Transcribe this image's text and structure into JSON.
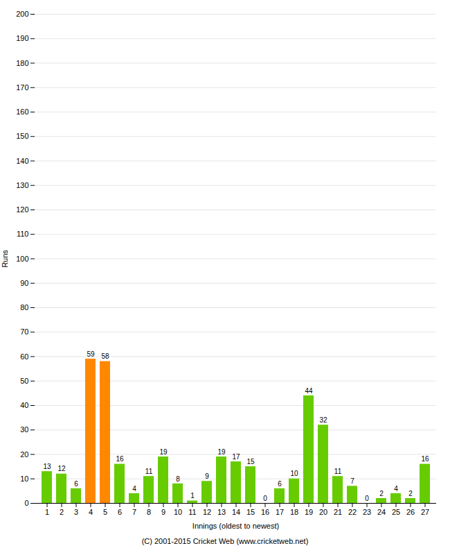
{
  "chart_data": {
    "type": "bar",
    "categories": [
      "1",
      "2",
      "3",
      "4",
      "5",
      "6",
      "7",
      "8",
      "9",
      "10",
      "11",
      "12",
      "13",
      "14",
      "15",
      "16",
      "17",
      "18",
      "19",
      "20",
      "21",
      "22",
      "23",
      "24",
      "25",
      "26",
      "27"
    ],
    "values": [
      13,
      12,
      6,
      59,
      58,
      16,
      4,
      11,
      19,
      8,
      1,
      9,
      19,
      17,
      15,
      0,
      6,
      10,
      44,
      32,
      11,
      7,
      0,
      2,
      4,
      2,
      16
    ],
    "colors": [
      "#66cc00",
      "#66cc00",
      "#66cc00",
      "#ff8800",
      "#ff8800",
      "#66cc00",
      "#66cc00",
      "#66cc00",
      "#66cc00",
      "#66cc00",
      "#66cc00",
      "#66cc00",
      "#66cc00",
      "#66cc00",
      "#66cc00",
      "#66cc00",
      "#66cc00",
      "#66cc00",
      "#66cc00",
      "#66cc00",
      "#66cc00",
      "#66cc00",
      "#66cc00",
      "#66cc00",
      "#66cc00",
      "#66cc00",
      "#66cc00"
    ],
    "xlabel": "Innings (oldest to newest)",
    "ylabel": "Runs",
    "ylim": [
      0,
      200
    ],
    "yticks": [
      0,
      10,
      20,
      30,
      40,
      50,
      60,
      70,
      80,
      90,
      100,
      110,
      120,
      130,
      140,
      150,
      160,
      170,
      180,
      190,
      200
    ],
    "grid": true,
    "data_labels": true,
    "annotations": [
      "(C) 2001-2015 Cricket Web (www.cricketweb.net)"
    ]
  }
}
